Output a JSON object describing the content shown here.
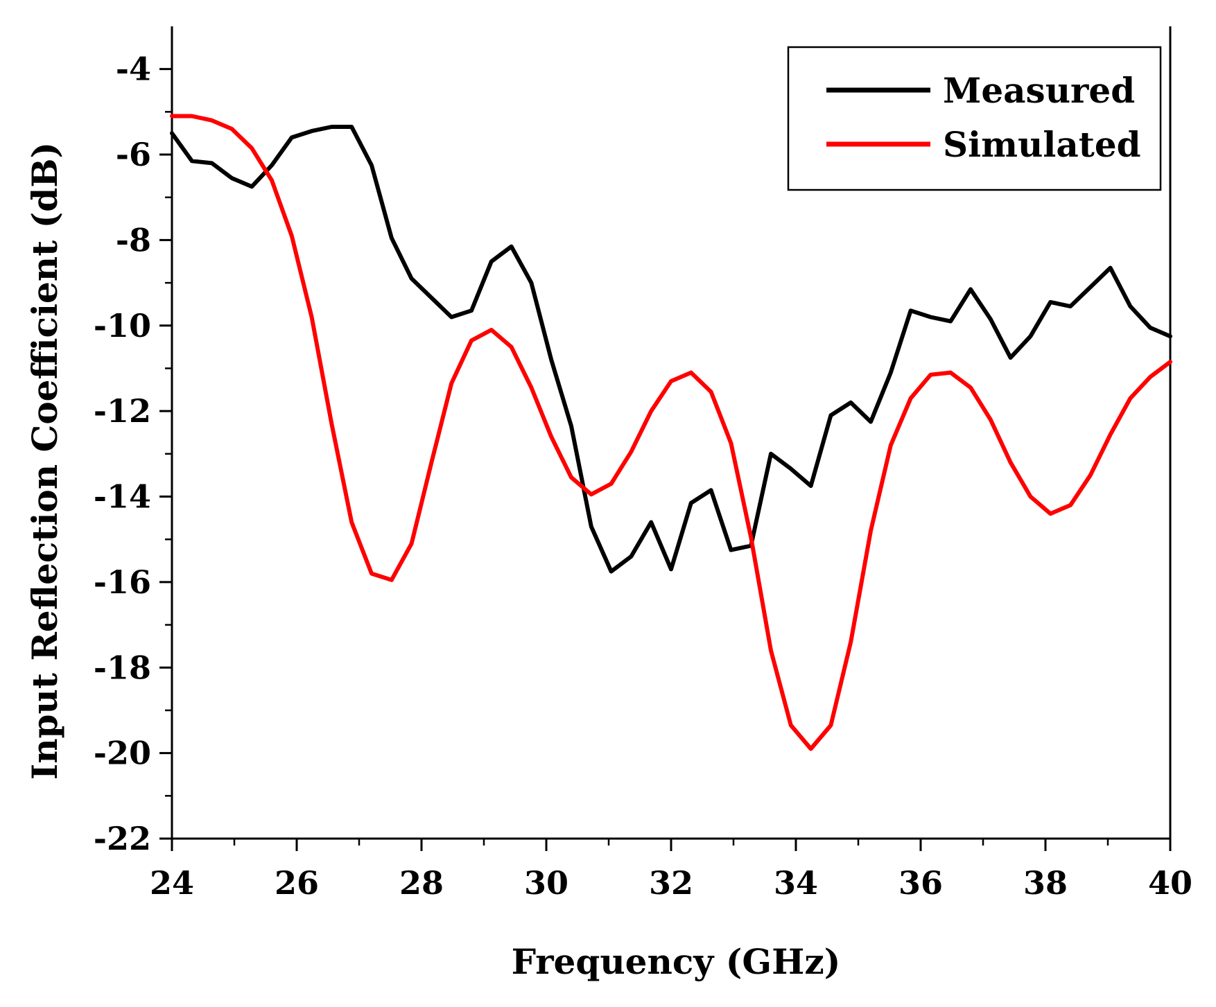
{
  "chart_data": {
    "type": "line",
    "title": "",
    "xlabel": "Frequency (GHz)",
    "ylabel": "Input Reflection Coefficient (dB)",
    "xlim": [
      24,
      40
    ],
    "ylim": [
      -22,
      -3
    ],
    "xticks": [
      24,
      26,
      28,
      30,
      32,
      34,
      36,
      38,
      40
    ],
    "xtick_labels": [
      "24",
      "26",
      "28",
      "30",
      "32",
      "34",
      "36",
      "38",
      "40"
    ],
    "yticks": [
      -22,
      -20,
      -18,
      -16,
      -14,
      -12,
      -10,
      -8,
      -6,
      -4
    ],
    "ytick_labels": [
      "-22",
      "-20",
      "-18",
      "-16",
      "-14",
      "-12",
      "-10",
      "-8",
      "-6",
      "-4"
    ],
    "grid": false,
    "legend_position": "top-right",
    "series": [
      {
        "name": "Measured",
        "color": "#000000",
        "x": [
          24.0,
          24.32,
          24.64,
          24.96,
          25.28,
          25.6,
          25.92,
          26.24,
          26.56,
          26.88,
          27.2,
          27.52,
          27.84,
          28.16,
          28.48,
          28.8,
          29.12,
          29.44,
          29.76,
          30.08,
          30.4,
          30.72,
          31.04,
          31.36,
          31.68,
          32.0,
          32.32,
          32.64,
          32.96,
          33.28,
          33.6,
          33.92,
          34.24,
          34.56,
          34.88,
          35.2,
          35.52,
          35.84,
          36.16,
          36.48,
          36.8,
          37.12,
          37.44,
          37.76,
          38.08,
          38.4,
          38.72,
          39.04,
          39.36,
          39.68,
          40.0
        ],
        "values": [
          -5.5,
          -6.15,
          -6.2,
          -6.55,
          -6.75,
          -6.25,
          -5.6,
          -5.45,
          -5.35,
          -5.35,
          -6.25,
          -7.95,
          -8.9,
          -9.35,
          -9.8,
          -9.65,
          -8.5,
          -8.15,
          -9.0,
          -10.8,
          -12.35,
          -14.7,
          -15.75,
          -15.4,
          -14.6,
          -15.7,
          -14.15,
          -13.85,
          -15.25,
          -15.15,
          -13.0,
          -13.35,
          -13.75,
          -12.1,
          -11.8,
          -12.25,
          -11.1,
          -9.65,
          -9.8,
          -9.9,
          -9.15,
          -9.85,
          -10.75,
          -10.25,
          -9.45,
          -9.55,
          -9.1,
          -8.65,
          -9.55,
          -10.05,
          -10.25
        ]
      },
      {
        "name": "Simulated",
        "color": "#ff0000",
        "x": [
          24.0,
          24.32,
          24.64,
          24.96,
          25.28,
          25.6,
          25.92,
          26.24,
          26.56,
          26.88,
          27.2,
          27.52,
          27.84,
          28.16,
          28.48,
          28.8,
          29.12,
          29.44,
          29.76,
          30.08,
          30.4,
          30.72,
          31.04,
          31.36,
          31.68,
          32.0,
          32.32,
          32.64,
          32.96,
          33.28,
          33.6,
          33.92,
          34.24,
          34.56,
          34.88,
          35.2,
          35.52,
          35.84,
          36.16,
          36.48,
          36.8,
          37.12,
          37.44,
          37.76,
          38.08,
          38.4,
          38.72,
          39.04,
          39.36,
          39.68,
          40.0
        ],
        "values": [
          -5.1,
          -5.1,
          -5.2,
          -5.4,
          -5.85,
          -6.6,
          -7.9,
          -9.8,
          -12.3,
          -14.6,
          -15.8,
          -15.95,
          -15.1,
          -13.2,
          -11.35,
          -10.35,
          -10.1,
          -10.5,
          -11.45,
          -12.6,
          -13.55,
          -13.95,
          -13.7,
          -12.95,
          -12.0,
          -11.3,
          -11.1,
          -11.55,
          -12.75,
          -14.95,
          -17.6,
          -19.35,
          -19.9,
          -19.35,
          -17.4,
          -14.8,
          -12.8,
          -11.7,
          -11.15,
          -11.1,
          -11.45,
          -12.2,
          -13.2,
          -14.0,
          -14.4,
          -14.2,
          -13.5,
          -12.55,
          -11.7,
          -11.2,
          -10.85
        ]
      }
    ]
  }
}
